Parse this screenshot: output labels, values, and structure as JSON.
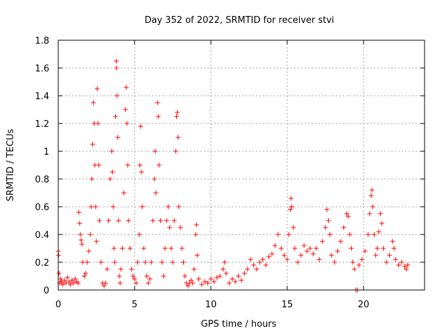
{
  "chart_data": {
    "type": "scatter",
    "title": "Day 352 of 2022, SRMTID for receiver stvi",
    "xlabel": "GPS time / hours",
    "ylabel": "SRMTID / TECUs",
    "xlim": [
      0,
      24
    ],
    "ylim": [
      0,
      1.8
    ],
    "xticks": [
      0,
      5,
      10,
      15,
      20
    ],
    "yticks": [
      0,
      0.2,
      0.4,
      0.6,
      0.8,
      1,
      1.2,
      1.4,
      1.6,
      1.8
    ],
    "ytick_labels": [
      "0",
      "0.2",
      "0.4",
      "0.6",
      "0.8",
      "1",
      "1.2",
      "1.4",
      "1.6",
      "1.8"
    ],
    "grid": true,
    "marker": "plus",
    "color": "#ff0000",
    "series": [
      {
        "name": "SRMTID",
        "points": [
          [
            0.0,
            0.28
          ],
          [
            0.02,
            0.25
          ],
          [
            0.05,
            0.12
          ],
          [
            0.1,
            0.05
          ],
          [
            0.15,
            0.08
          ],
          [
            0.2,
            0.06
          ],
          [
            0.3,
            0.04
          ],
          [
            0.4,
            0.07
          ],
          [
            0.5,
            0.05
          ],
          [
            0.6,
            0.09
          ],
          [
            0.7,
            0.06
          ],
          [
            0.8,
            0.04
          ],
          [
            0.9,
            0.07
          ],
          [
            1.0,
            0.05
          ],
          [
            1.1,
            0.08
          ],
          [
            1.2,
            0.06
          ],
          [
            1.3,
            0.05
          ],
          [
            1.35,
            0.56
          ],
          [
            1.4,
            0.48
          ],
          [
            1.45,
            0.4
          ],
          [
            1.5,
            0.36
          ],
          [
            1.55,
            0.33
          ],
          [
            1.6,
            0.2
          ],
          [
            1.7,
            0.1
          ],
          [
            1.8,
            0.12
          ],
          [
            1.9,
            0.2
          ],
          [
            2.0,
            0.28
          ],
          [
            2.1,
            0.4
          ],
          [
            2.15,
            0.6
          ],
          [
            2.2,
            0.8
          ],
          [
            2.25,
            1.05
          ],
          [
            2.3,
            1.35
          ],
          [
            2.35,
            1.2
          ],
          [
            2.4,
            0.9
          ],
          [
            2.45,
            0.6
          ],
          [
            2.5,
            0.35
          ],
          [
            2.55,
            1.45
          ],
          [
            2.6,
            1.2
          ],
          [
            2.65,
            0.9
          ],
          [
            2.7,
            0.5
          ],
          [
            2.8,
            0.2
          ],
          [
            2.9,
            0.05
          ],
          [
            3.0,
            0.03
          ],
          [
            3.1,
            0.05
          ],
          [
            3.2,
            0.15
          ],
          [
            3.3,
            0.5
          ],
          [
            3.4,
            0.8
          ],
          [
            3.5,
            1.0
          ],
          [
            3.55,
            0.85
          ],
          [
            3.6,
            0.6
          ],
          [
            3.65,
            0.3
          ],
          [
            3.7,
            0.2
          ],
          [
            3.75,
            1.25
          ],
          [
            3.8,
            1.65
          ],
          [
            3.82,
            1.6
          ],
          [
            3.85,
            1.4
          ],
          [
            3.9,
            1.1
          ],
          [
            3.95,
            0.5
          ],
          [
            4.0,
            0.1
          ],
          [
            4.05,
            0.05
          ],
          [
            4.1,
            0.15
          ],
          [
            4.2,
            0.3
          ],
          [
            4.3,
            0.7
          ],
          [
            4.4,
            1.3
          ],
          [
            4.45,
            1.46
          ],
          [
            4.5,
            1.2
          ],
          [
            4.55,
            0.9
          ],
          [
            4.6,
            0.5
          ],
          [
            4.7,
            0.3
          ],
          [
            4.8,
            0.15
          ],
          [
            4.9,
            0.1
          ],
          [
            5.0,
            0.08
          ],
          [
            5.1,
            0.05
          ],
          [
            5.2,
            0.2
          ],
          [
            5.3,
            0.4
          ],
          [
            5.35,
            0.9
          ],
          [
            5.4,
            1.18
          ],
          [
            5.45,
            0.85
          ],
          [
            5.5,
            0.6
          ],
          [
            5.6,
            0.3
          ],
          [
            5.7,
            0.2
          ],
          [
            5.8,
            0.1
          ],
          [
            5.9,
            0.05
          ],
          [
            6.0,
            0.08
          ],
          [
            6.1,
            0.2
          ],
          [
            6.2,
            0.5
          ],
          [
            6.3,
            0.8
          ],
          [
            6.35,
            1.0
          ],
          [
            6.4,
            0.7
          ],
          [
            6.5,
            1.35
          ],
          [
            6.55,
            1.25
          ],
          [
            6.6,
            0.9
          ],
          [
            6.7,
            0.5
          ],
          [
            6.8,
            0.2
          ],
          [
            6.9,
            0.1
          ],
          [
            7.0,
            0.3
          ],
          [
            7.1,
            0.5
          ],
          [
            7.2,
            0.6
          ],
          [
            7.3,
            0.45
          ],
          [
            7.4,
            0.3
          ],
          [
            7.5,
            0.2
          ],
          [
            7.6,
            0.5
          ],
          [
            7.7,
            1.0
          ],
          [
            7.75,
            1.25
          ],
          [
            7.8,
            1.28
          ],
          [
            7.85,
            1.1
          ],
          [
            7.9,
            0.6
          ],
          [
            8.0,
            0.45
          ],
          [
            8.1,
            0.3
          ],
          [
            8.2,
            0.2
          ],
          [
            8.3,
            0.1
          ],
          [
            8.4,
            0.05
          ],
          [
            8.5,
            0.03
          ],
          [
            8.6,
            0.05
          ],
          [
            8.7,
            0.07
          ],
          [
            8.8,
            0.05
          ],
          [
            8.9,
            0.15
          ],
          [
            9.0,
            0.4
          ],
          [
            9.05,
            0.47
          ],
          [
            9.1,
            0.25
          ],
          [
            9.2,
            0.08
          ],
          [
            9.4,
            0.04
          ],
          [
            9.6,
            0.06
          ],
          [
            9.8,
            0.05
          ],
          [
            10.0,
            0.08
          ],
          [
            10.2,
            0.06
          ],
          [
            10.4,
            0.09
          ],
          [
            10.6,
            0.1
          ],
          [
            10.8,
            0.15
          ],
          [
            10.9,
            0.2
          ],
          [
            11.0,
            0.12
          ],
          [
            11.2,
            0.05
          ],
          [
            11.4,
            0.08
          ],
          [
            11.6,
            0.06
          ],
          [
            11.8,
            0.1
          ],
          [
            12.0,
            0.07
          ],
          [
            12.2,
            0.12
          ],
          [
            12.4,
            0.15
          ],
          [
            12.6,
            0.22
          ],
          [
            12.8,
            0.18
          ],
          [
            13.0,
            0.15
          ],
          [
            13.2,
            0.2
          ],
          [
            13.4,
            0.22
          ],
          [
            13.6,
            0.18
          ],
          [
            13.8,
            0.24
          ],
          [
            14.0,
            0.26
          ],
          [
            14.2,
            0.32
          ],
          [
            14.4,
            0.4
          ],
          [
            14.6,
            0.3
          ],
          [
            14.8,
            0.25
          ],
          [
            15.0,
            0.22
          ],
          [
            15.1,
            0.4
          ],
          [
            15.2,
            0.58
          ],
          [
            15.25,
            0.66
          ],
          [
            15.3,
            0.6
          ],
          [
            15.4,
            0.45
          ],
          [
            15.5,
            0.3
          ],
          [
            15.7,
            0.2
          ],
          [
            15.9,
            0.25
          ],
          [
            16.1,
            0.32
          ],
          [
            16.3,
            0.28
          ],
          [
            16.5,
            0.3
          ],
          [
            16.7,
            0.26
          ],
          [
            16.9,
            0.3
          ],
          [
            17.1,
            0.22
          ],
          [
            17.3,
            0.35
          ],
          [
            17.5,
            0.45
          ],
          [
            17.6,
            0.58
          ],
          [
            17.7,
            0.5
          ],
          [
            17.8,
            0.4
          ],
          [
            17.9,
            0.25
          ],
          [
            18.1,
            0.2
          ],
          [
            18.3,
            0.28
          ],
          [
            18.5,
            0.35
          ],
          [
            18.7,
            0.45
          ],
          [
            18.9,
            0.55
          ],
          [
            19.0,
            0.53
          ],
          [
            19.1,
            0.4
          ],
          [
            19.2,
            0.3
          ],
          [
            19.3,
            0.2
          ],
          [
            19.4,
            0.15
          ],
          [
            19.5,
            0.0
          ],
          [
            19.6,
            0.0
          ],
          [
            19.7,
            0.18
          ],
          [
            19.9,
            0.22
          ],
          [
            20.1,
            0.28
          ],
          [
            20.3,
            0.4
          ],
          [
            20.4,
            0.55
          ],
          [
            20.5,
            0.68
          ],
          [
            20.55,
            0.72
          ],
          [
            20.6,
            0.6
          ],
          [
            20.7,
            0.4
          ],
          [
            20.8,
            0.25
          ],
          [
            20.9,
            0.3
          ],
          [
            21.0,
            0.42
          ],
          [
            21.1,
            0.55
          ],
          [
            21.2,
            0.48
          ],
          [
            21.3,
            0.3
          ],
          [
            21.5,
            0.2
          ],
          [
            21.7,
            0.25
          ],
          [
            21.9,
            0.35
          ],
          [
            22.0,
            0.3
          ],
          [
            22.1,
            0.22
          ],
          [
            22.3,
            0.18
          ],
          [
            22.5,
            0.2
          ],
          [
            22.7,
            0.17
          ],
          [
            22.8,
            0.15
          ],
          [
            22.9,
            0.18
          ]
        ]
      }
    ]
  }
}
